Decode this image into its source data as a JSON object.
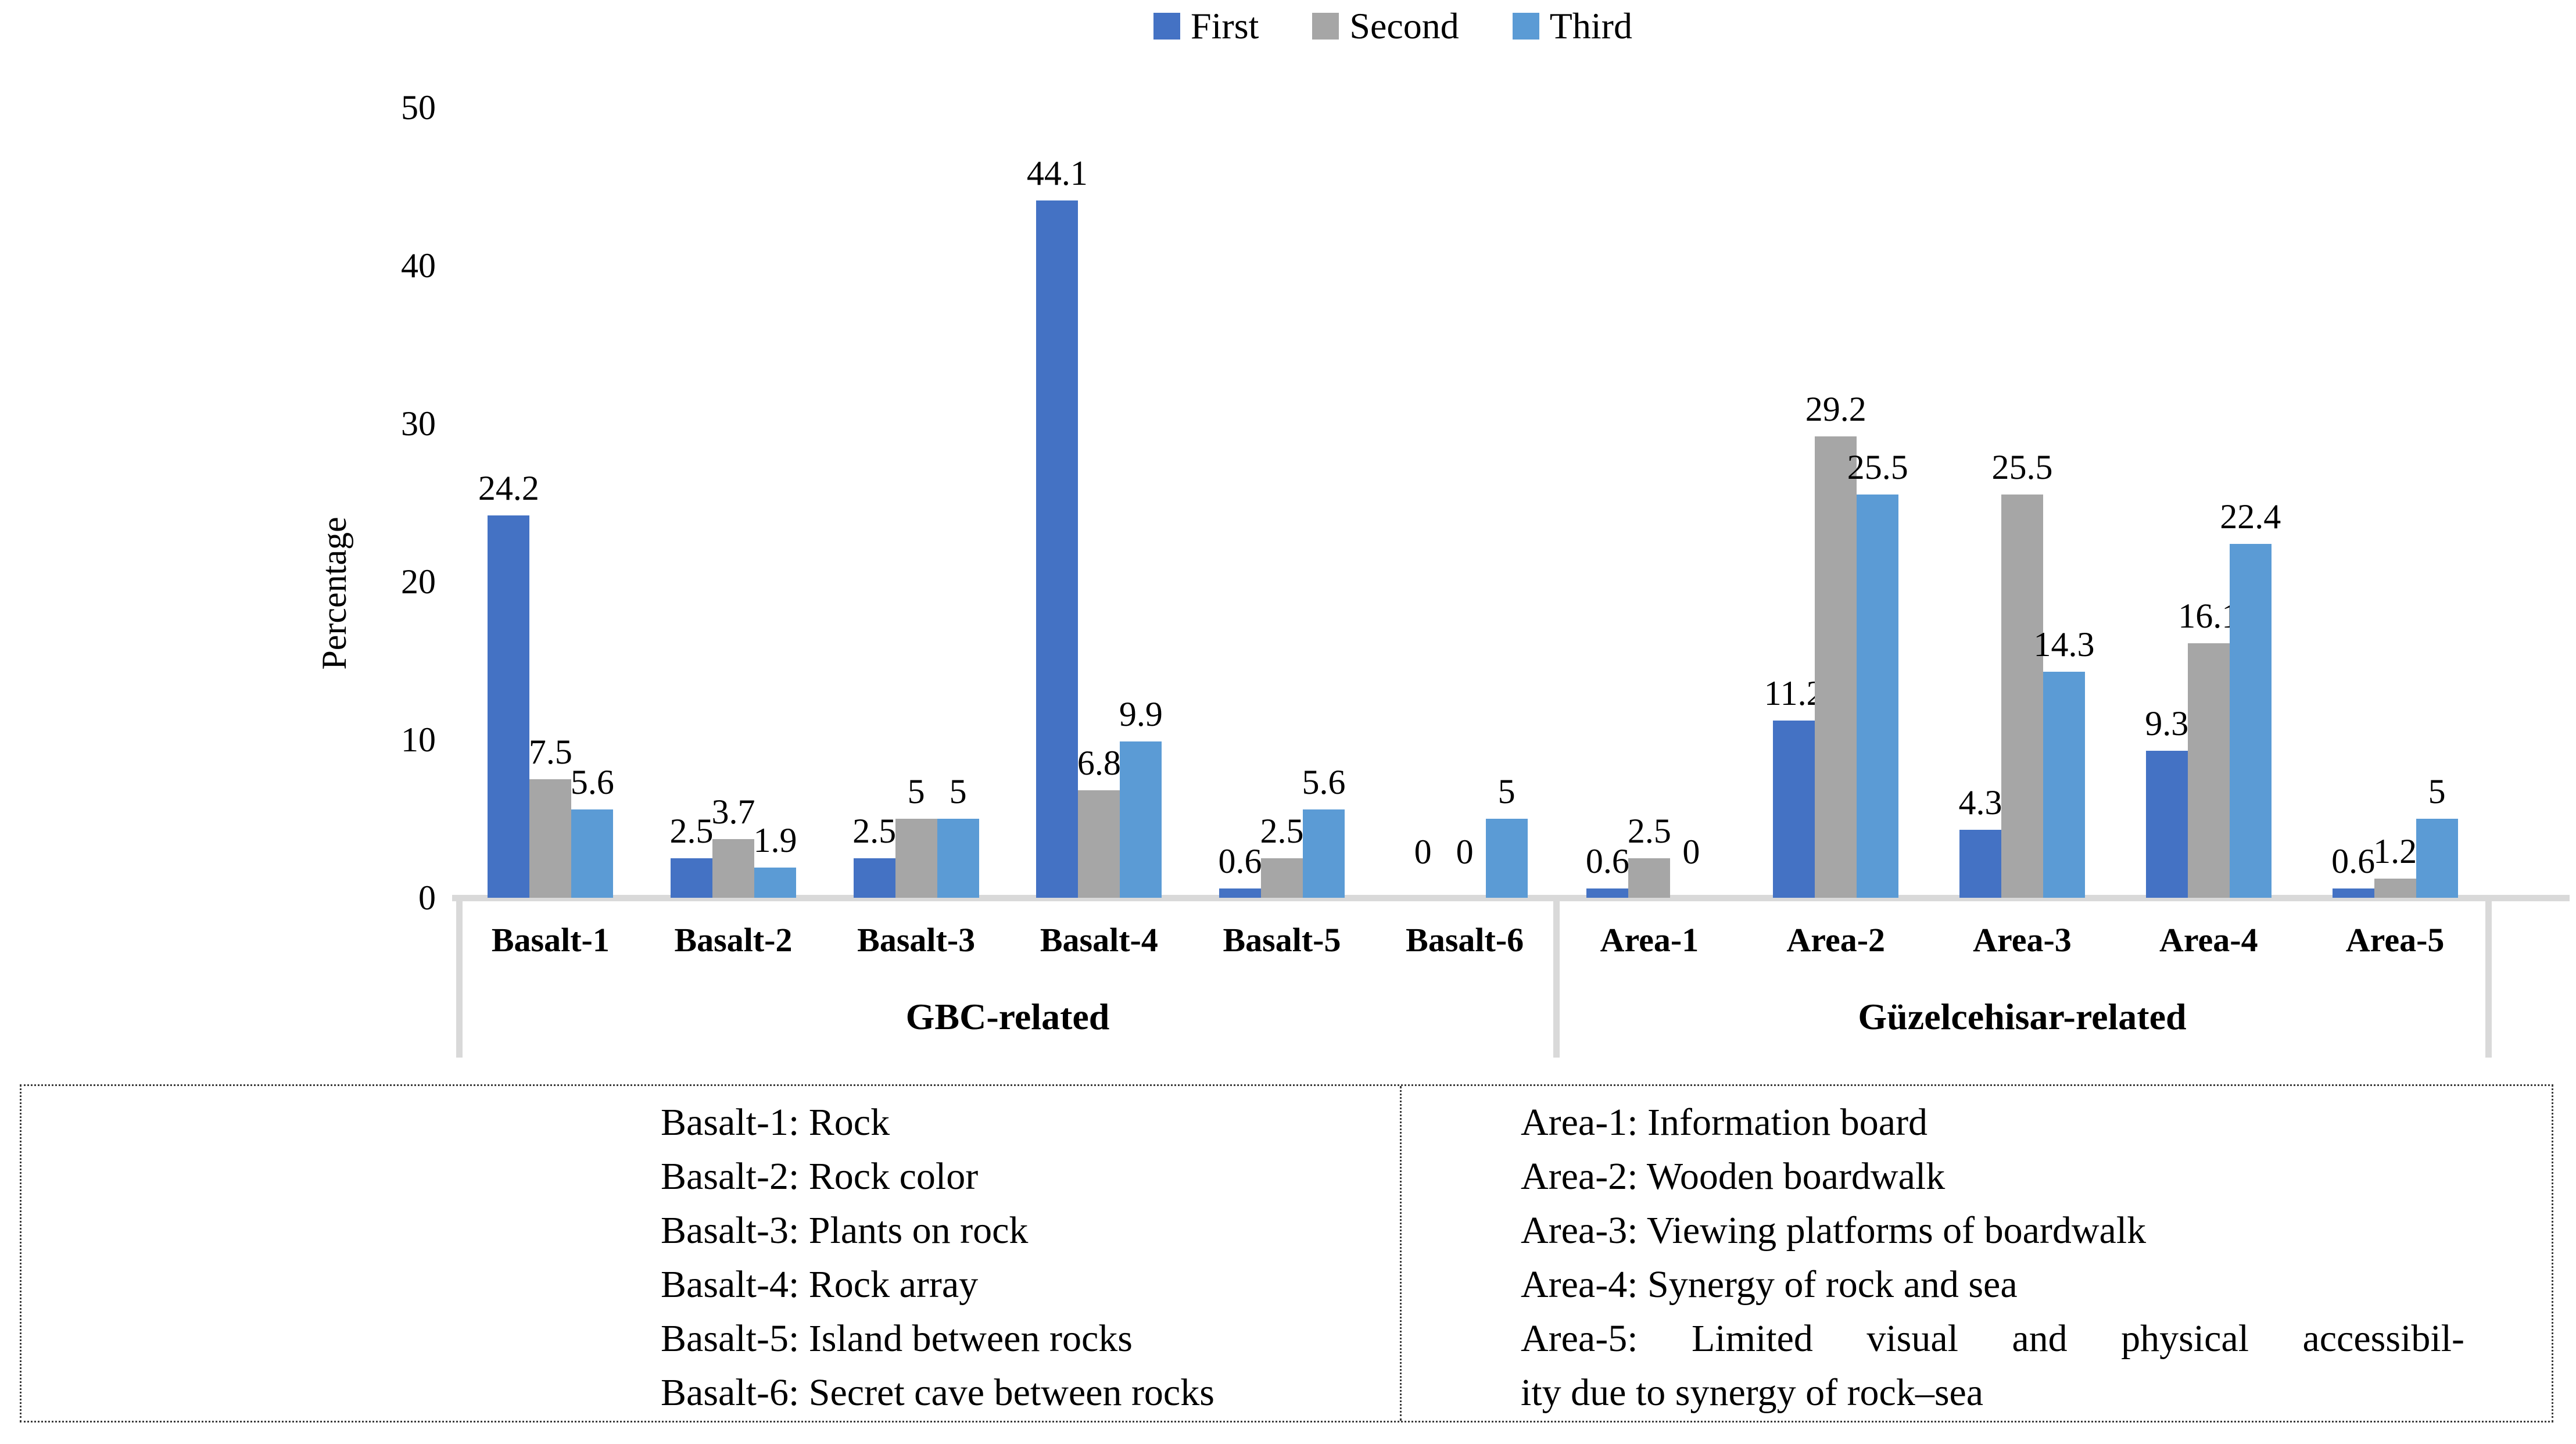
{
  "legend": {
    "items": [
      {
        "label": "First",
        "color": "#4472C4"
      },
      {
        "label": "Second",
        "color": "#A6A6A6"
      },
      {
        "label": "Third",
        "color": "#5B9BD5"
      }
    ]
  },
  "chart_data": {
    "type": "bar",
    "title": "",
    "xlabel": "",
    "ylabel": "Percentage",
    "ylim": [
      0,
      50
    ],
    "yticks": [
      0,
      10,
      20,
      30,
      40,
      50
    ],
    "grid": false,
    "legend_position": "top",
    "data_labels": true,
    "categories": [
      "Basalt-1",
      "Basalt-2",
      "Basalt-3",
      "Basalt-4",
      "Basalt-5",
      "Basalt-6",
      "Area-1",
      "Area-2",
      "Area-3",
      "Area-4",
      "Area-5"
    ],
    "groups": [
      {
        "label": "GBC-related",
        "category_count": 6
      },
      {
        "label": "Güzelcehisar-related",
        "category_count": 5
      }
    ],
    "series": [
      {
        "name": "First",
        "color": "#4472C4",
        "values": [
          24.2,
          2.5,
          2.5,
          44.1,
          0.6,
          0,
          0.6,
          11.2,
          4.3,
          9.3,
          0.6
        ]
      },
      {
        "name": "Second",
        "color": "#A6A6A6",
        "values": [
          7.5,
          3.7,
          5,
          6.8,
          2.5,
          0,
          2.5,
          29.2,
          25.5,
          16.1,
          1.2
        ]
      },
      {
        "name": "Third",
        "color": "#5B9BD5",
        "values": [
          5.6,
          1.9,
          5,
          9.9,
          5.6,
          5,
          0,
          25.5,
          14.3,
          22.4,
          5
        ]
      }
    ]
  },
  "footnote_table": {
    "left_rows": [
      "Basalt-1: Rock",
      "Basalt-2: Rock color",
      "Basalt-3: Plants on rock",
      "Basalt-4: Rock array",
      "Basalt-5: Island between rocks",
      "Basalt-6: Secret cave between rocks"
    ],
    "right_rows": [
      "Area-1: Information board",
      "Area-2: Wooden boardwalk",
      "Area-3: Viewing platforms of boardwalk",
      "Area-4: Synergy of rock and sea",
      "Area-5: Limited visual and physical accessibil-",
      "ity due to synergy of rock–sea"
    ]
  },
  "colors": {
    "axis_gray": "#D9D9D9",
    "text": "#000000",
    "background": "#FFFFFF"
  }
}
